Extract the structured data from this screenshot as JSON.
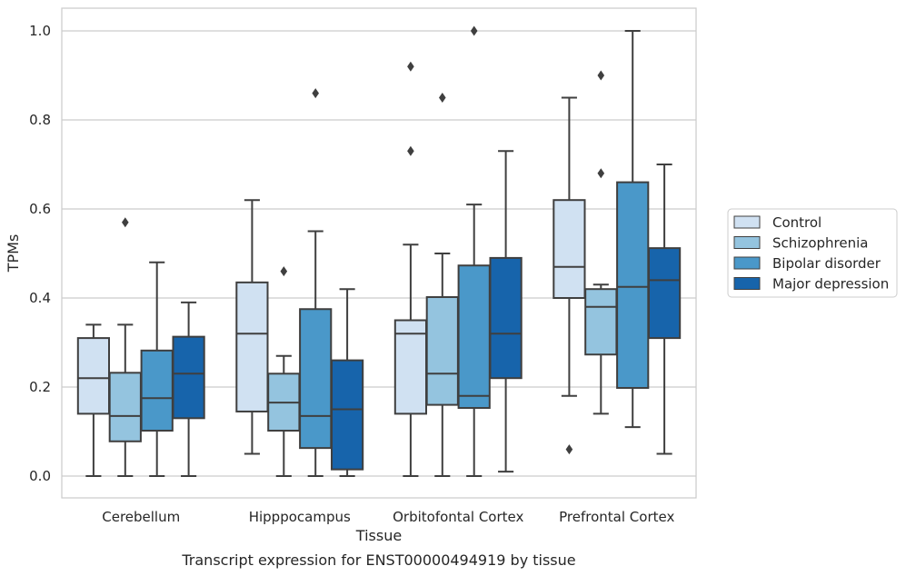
{
  "chart_data": {
    "type": "box",
    "title": "",
    "caption": "Transcript expression for ENST00000494919 by tissue",
    "xlabel": "Tissue",
    "ylabel": "TPMs",
    "ylim": [
      -0.05,
      1.05
    ],
    "yticks": [
      0.0,
      0.2,
      0.4,
      0.6,
      0.8,
      1.0
    ],
    "ytick_labels": [
      "0.0",
      "0.2",
      "0.4",
      "0.6",
      "0.8",
      "1.0"
    ],
    "grid": "horizontal",
    "legend_position": "right",
    "categories": [
      "Cerebellum",
      "Hipppocampus",
      "Orbitofontal Cortex",
      "Prefrontal Cortex"
    ],
    "series": [
      {
        "name": "Control",
        "color": "#d0e1f2",
        "boxes": [
          {
            "whislo": 0.0,
            "q1": 0.14,
            "med": 0.22,
            "q3": 0.31,
            "whishi": 0.34,
            "fliers": []
          },
          {
            "whislo": 0.05,
            "q1": 0.145,
            "med": 0.32,
            "q3": 0.435,
            "whishi": 0.62,
            "fliers": []
          },
          {
            "whislo": 0.0,
            "q1": 0.14,
            "med": 0.32,
            "q3": 0.35,
            "whishi": 0.52,
            "fliers": [
              0.73,
              0.92
            ]
          },
          {
            "whislo": 0.18,
            "q1": 0.4,
            "med": 0.47,
            "q3": 0.62,
            "whishi": 0.85,
            "fliers": [
              0.06
            ]
          }
        ]
      },
      {
        "name": "Schizophrenia",
        "color": "#94c4df",
        "boxes": [
          {
            "whislo": 0.0,
            "q1": 0.078,
            "med": 0.135,
            "q3": 0.232,
            "whishi": 0.34,
            "fliers": [
              0.57
            ]
          },
          {
            "whislo": 0.0,
            "q1": 0.102,
            "med": 0.165,
            "q3": 0.23,
            "whishi": 0.27,
            "fliers": [
              0.46
            ]
          },
          {
            "whislo": 0.0,
            "q1": 0.16,
            "med": 0.23,
            "q3": 0.402,
            "whishi": 0.5,
            "fliers": [
              0.85
            ]
          },
          {
            "whislo": 0.14,
            "q1": 0.273,
            "med": 0.38,
            "q3": 0.42,
            "whishi": 0.43,
            "fliers": [
              0.68,
              0.9
            ]
          }
        ]
      },
      {
        "name": "Bipolar disorder",
        "color": "#4a98c9",
        "boxes": [
          {
            "whislo": 0.0,
            "q1": 0.102,
            "med": 0.175,
            "q3": 0.282,
            "whishi": 0.48,
            "fliers": []
          },
          {
            "whislo": 0.0,
            "q1": 0.063,
            "med": 0.135,
            "q3": 0.375,
            "whishi": 0.55,
            "fliers": [
              0.86
            ]
          },
          {
            "whislo": 0.0,
            "q1": 0.153,
            "med": 0.18,
            "q3": 0.473,
            "whishi": 0.61,
            "fliers": [
              1.0
            ]
          },
          {
            "whislo": 0.11,
            "q1": 0.198,
            "med": 0.425,
            "q3": 0.66,
            "whishi": 1.0,
            "fliers": []
          }
        ]
      },
      {
        "name": "Major depression",
        "color": "#1764ab",
        "boxes": [
          {
            "whislo": 0.0,
            "q1": 0.13,
            "med": 0.23,
            "q3": 0.313,
            "whishi": 0.39,
            "fliers": []
          },
          {
            "whislo": 0.0,
            "q1": 0.015,
            "med": 0.15,
            "q3": 0.26,
            "whishi": 0.42,
            "fliers": []
          },
          {
            "whislo": 0.01,
            "q1": 0.22,
            "med": 0.32,
            "q3": 0.49,
            "whishi": 0.73,
            "fliers": []
          },
          {
            "whislo": 0.05,
            "q1": 0.31,
            "med": 0.44,
            "q3": 0.512,
            "whishi": 0.7,
            "fliers": []
          }
        ]
      }
    ]
  }
}
